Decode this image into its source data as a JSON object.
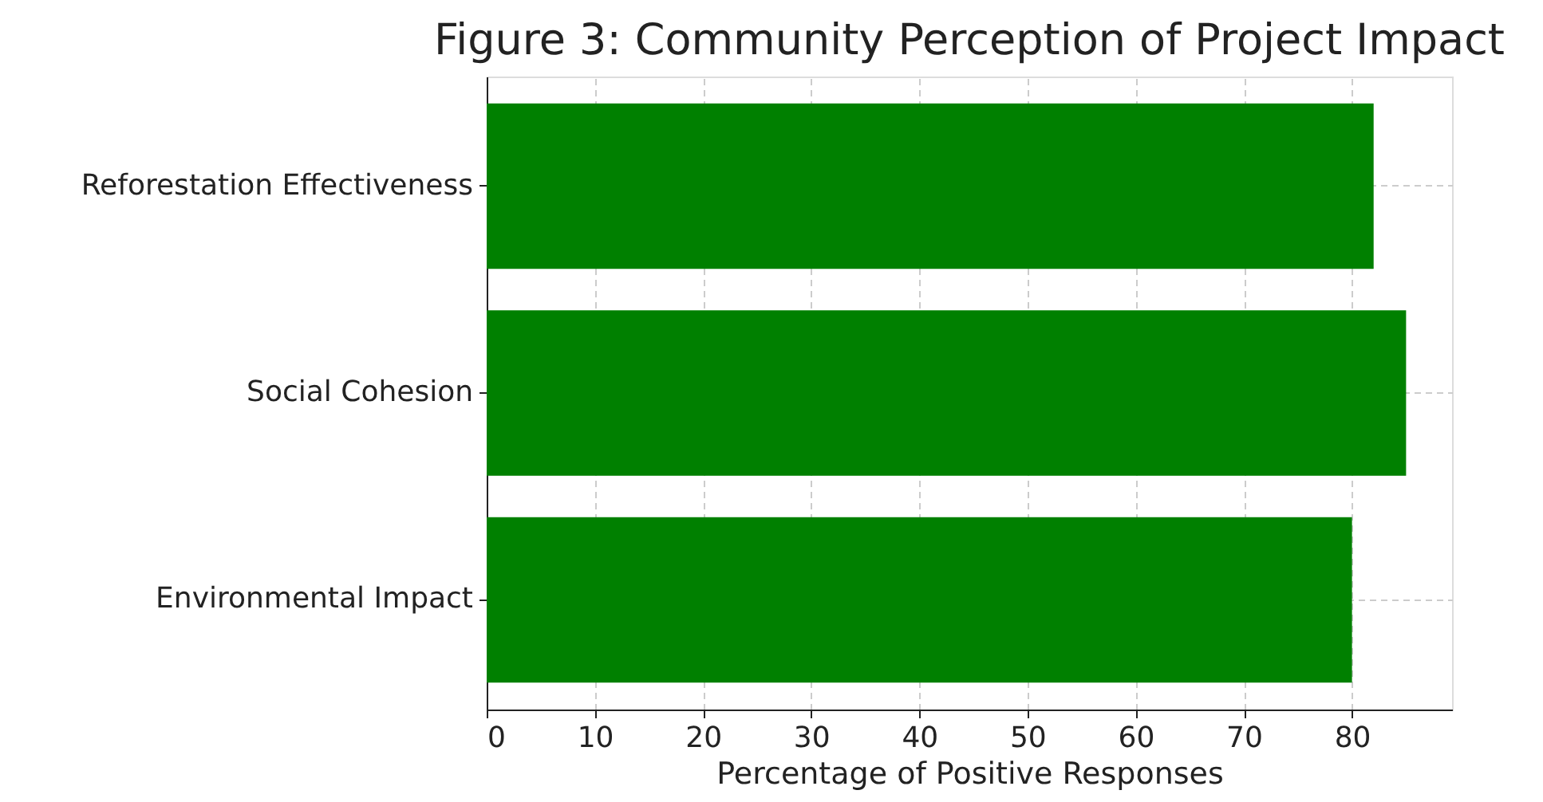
{
  "chart_data": {
    "type": "bar",
    "orientation": "horizontal",
    "title": "Figure 3: Community Perception of Project Impact",
    "categories": [
      "Reforestation Effectiveness",
      "Social Cohesion",
      "Environmental Impact"
    ],
    "values": [
      82,
      85,
      80
    ],
    "color": "#008000",
    "xlabel": "Percentage of Positive Responses",
    "xlim": [
      0,
      89.25
    ],
    "xticks": [
      0,
      10,
      20,
      30,
      40,
      50,
      60,
      70,
      80
    ],
    "grid": true
  }
}
